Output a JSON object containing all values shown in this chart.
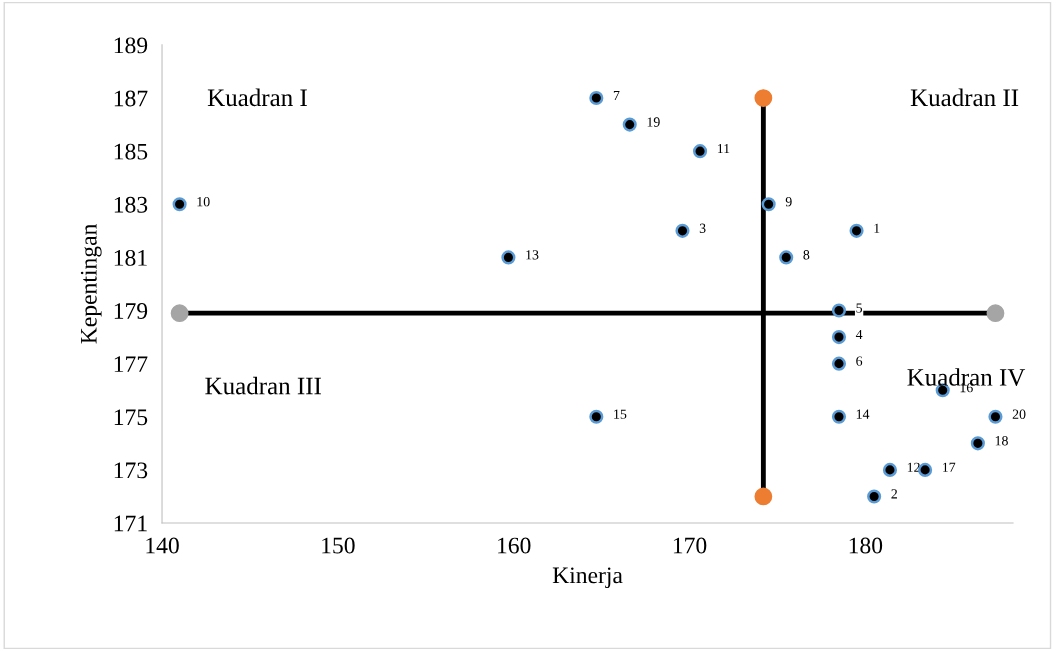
{
  "chart_data": {
    "type": "scatter",
    "xlabel": "Kinerja",
    "ylabel": "Kepentingan",
    "xlim": [
      140,
      188.4
    ],
    "xticks": [
      140,
      150,
      160,
      170,
      180
    ],
    "ylim": [
      171,
      189
    ],
    "yticks": [
      171,
      173,
      175,
      177,
      179,
      181,
      183,
      185,
      187,
      189
    ],
    "grid": false,
    "legend": false,
    "marker": "circle",
    "annotations": [
      "Kuadran I",
      "Kuadran II",
      "Kuadran III",
      "Kuadran IV",
      {
        "text": "1",
        "x": 179.5,
        "y": 182
      },
      {
        "text": "2",
        "x": 180.5,
        "y": 172
      },
      {
        "text": "3",
        "x": 169.6,
        "y": 182
      },
      {
        "text": "4",
        "x": 178.5,
        "y": 178
      },
      {
        "text": "5",
        "x": 178.5,
        "y": 179
      },
      {
        "text": "6",
        "x": 178.5,
        "y": 177
      },
      {
        "text": "7",
        "x": 164.7,
        "y": 187
      },
      {
        "text": "8",
        "x": 175.5,
        "y": 181
      },
      {
        "text": "9",
        "x": 174.5,
        "y": 183
      },
      {
        "text": "10",
        "x": 141.0,
        "y": 183
      },
      {
        "text": "11",
        "x": 170.6,
        "y": 185
      },
      {
        "text": "12",
        "x": 181.4,
        "y": 173
      },
      {
        "text": "13",
        "x": 159.7,
        "y": 181
      },
      {
        "text": "14",
        "x": 178.5,
        "y": 175
      },
      {
        "text": "15",
        "x": 164.7,
        "y": 175
      },
      {
        "text": "16",
        "x": 184.4,
        "y": 176
      },
      {
        "text": "17",
        "x": 183.4,
        "y": 173
      },
      {
        "text": "18",
        "x": 186.4,
        "y": 174
      },
      {
        "text": "19",
        "x": 166.6,
        "y": 186
      },
      {
        "text": "20",
        "x": 187.4,
        "y": 175
      }
    ],
    "series": [
      {
        "color": "#000000",
        "x": [
          179.5,
          180.5,
          169.6,
          178.5,
          178.5,
          178.5,
          164.7,
          175.5,
          174.5,
          141.0,
          170.6,
          181.4,
          159.7,
          178.5,
          164.7,
          184.4,
          183.4,
          186.4,
          166.6,
          187.4
        ],
        "values": [
          182,
          172,
          182,
          178,
          179,
          177,
          187,
          181,
          183,
          183,
          185,
          173,
          181,
          175,
          175,
          176,
          173,
          174,
          186,
          175
        ]
      },
      {
        "type": "line",
        "color": "#000000",
        "colors": [
          "#ed7d31",
          "#ed7d31"
        ],
        "x": [
          174.2,
          174.2
        ],
        "values": [
          187,
          172
        ]
      },
      {
        "type": "line",
        "color": "#000000",
        "colors": [
          "#a5a5a5",
          "#a5a5a5"
        ],
        "x": [
          141.0,
          187.4
        ],
        "values": [
          178.9,
          178.9
        ]
      }
    ]
  }
}
